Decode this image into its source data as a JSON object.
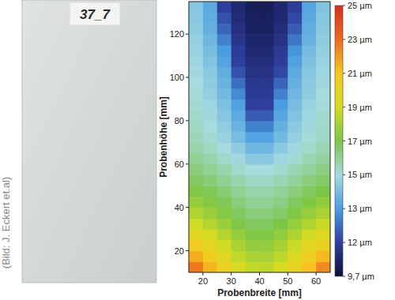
{
  "photo": {
    "label": "37_7"
  },
  "credit": "(Bild: J. Eckert et.al)",
  "chart_data": {
    "type": "heatmap",
    "x_label": "Probenbreite [mm]",
    "y_label": "Probenhöhe [mm]",
    "x": [
      17.5,
      22.5,
      27.5,
      32.5,
      37.5,
      42.5,
      47.5,
      52.5,
      57.5,
      62.5
    ],
    "y": [
      12.5,
      17.5,
      22.5,
      27.5,
      32.5,
      37.5,
      42.5,
      47.5,
      52.5,
      57.5,
      62.5,
      67.5,
      72.5,
      77.5,
      82.5,
      87.5,
      92.5,
      97.5,
      102.5,
      107.5,
      112.5,
      117.5,
      122.5,
      127.5,
      132.5
    ],
    "cells": [
      [
        22.7,
        21.4,
        20.2,
        19.1,
        18.6,
        18.5,
        19.0,
        20.0,
        21.1,
        22.3
      ],
      [
        21.6,
        20.6,
        19.6,
        18.6,
        18.1,
        18.0,
        18.5,
        19.4,
        20.4,
        21.3
      ],
      [
        20.6,
        19.8,
        18.9,
        18.1,
        17.5,
        17.5,
        18.0,
        18.8,
        19.7,
        20.4
      ],
      [
        19.7,
        19.0,
        18.3,
        17.6,
        17.1,
        17.1,
        17.5,
        18.2,
        18.9,
        19.5
      ],
      [
        18.9,
        18.3,
        17.7,
        17.1,
        16.7,
        16.7,
        17.0,
        17.6,
        18.2,
        18.8
      ],
      [
        18.2,
        17.7,
        17.2,
        16.7,
        16.3,
        16.3,
        16.6,
        17.1,
        17.6,
        18.1
      ],
      [
        17.6,
        17.2,
        16.8,
        16.3,
        16.0,
        16.0,
        16.2,
        16.7,
        17.1,
        17.5
      ],
      [
        17.1,
        16.8,
        16.4,
        16.0,
        15.7,
        15.7,
        15.9,
        16.3,
        16.7,
        17.0
      ],
      [
        16.7,
        16.4,
        16.0,
        15.7,
        15.4,
        15.4,
        15.6,
        15.9,
        16.3,
        16.6
      ],
      [
        16.3,
        16.0,
        15.7,
        15.3,
        15.0,
        15.0,
        15.2,
        15.6,
        15.9,
        16.2
      ],
      [
        16.0,
        15.7,
        15.3,
        14.9,
        14.4,
        14.4,
        14.8,
        15.2,
        15.6,
        15.9
      ],
      [
        15.7,
        15.4,
        15.0,
        14.5,
        13.8,
        13.8,
        14.4,
        14.9,
        15.3,
        15.6
      ],
      [
        15.5,
        15.2,
        14.7,
        14.0,
        13.2,
        13.2,
        13.9,
        14.6,
        15.1,
        15.4
      ],
      [
        15.4,
        15.0,
        14.5,
        13.7,
        12.7,
        12.7,
        13.6,
        14.4,
        14.9,
        15.3
      ],
      [
        15.3,
        14.9,
        14.3,
        13.4,
        12.3,
        12.3,
        13.3,
        14.2,
        14.8,
        15.2
      ],
      [
        15.2,
        14.8,
        14.1,
        13.1,
        12.0,
        12.0,
        13.0,
        14.0,
        14.7,
        15.1
      ],
      [
        15.1,
        14.6,
        13.9,
        12.8,
        11.8,
        11.8,
        12.7,
        13.8,
        14.5,
        15.0
      ],
      [
        15.0,
        14.5,
        13.7,
        12.5,
        11.6,
        11.6,
        12.4,
        13.6,
        14.4,
        14.9
      ],
      [
        14.9,
        14.4,
        13.5,
        12.2,
        11.4,
        11.4,
        12.1,
        13.4,
        14.3,
        14.8
      ],
      [
        14.8,
        14.2,
        13.2,
        12.0,
        11.2,
        11.2,
        11.9,
        13.1,
        14.1,
        14.7
      ],
      [
        14.7,
        14.0,
        13.0,
        11.8,
        11.0,
        11.0,
        11.7,
        12.9,
        13.9,
        14.6
      ],
      [
        14.6,
        13.8,
        12.7,
        11.5,
        10.8,
        10.8,
        11.4,
        12.6,
        13.7,
        14.5
      ],
      [
        14.5,
        13.6,
        12.4,
        11.3,
        10.6,
        10.6,
        11.2,
        12.3,
        13.5,
        14.4
      ],
      [
        14.4,
        13.5,
        12.2,
        11.1,
        10.5,
        10.5,
        11.0,
        12.1,
        13.4,
        14.3
      ],
      [
        14.3,
        13.4,
        12.0,
        11.0,
        10.4,
        10.4,
        10.9,
        11.9,
        13.3,
        14.2
      ]
    ],
    "xlim": [
      15,
      65
    ],
    "ylim": [
      10,
      135
    ],
    "xticks": [
      20,
      30,
      40,
      50,
      60
    ],
    "yticks": [
      20,
      40,
      60,
      80,
      100,
      120
    ],
    "colorbar": {
      "range": [
        9.7,
        25
      ],
      "ticks": [
        {
          "value": 9.7,
          "label": "9,7 µm"
        },
        {
          "value": 12,
          "label": "12 µm"
        },
        {
          "value": 13,
          "label": "13 µm"
        },
        {
          "value": 15,
          "label": "15 µm"
        },
        {
          "value": 17,
          "label": "17 µm"
        },
        {
          "value": 19,
          "label": "19 µm"
        },
        {
          "value": 21,
          "label": "21 µm"
        },
        {
          "value": 23,
          "label": "23 µm"
        },
        {
          "value": 25,
          "label": "25 µm"
        }
      ],
      "colors": [
        "#0d0f3a",
        "#2f3f9e",
        "#4a9ee0",
        "#a6dbe0",
        "#7cc648",
        "#d4dc22",
        "#f7c820",
        "#ee6a1e",
        "#d7301f"
      ]
    }
  }
}
